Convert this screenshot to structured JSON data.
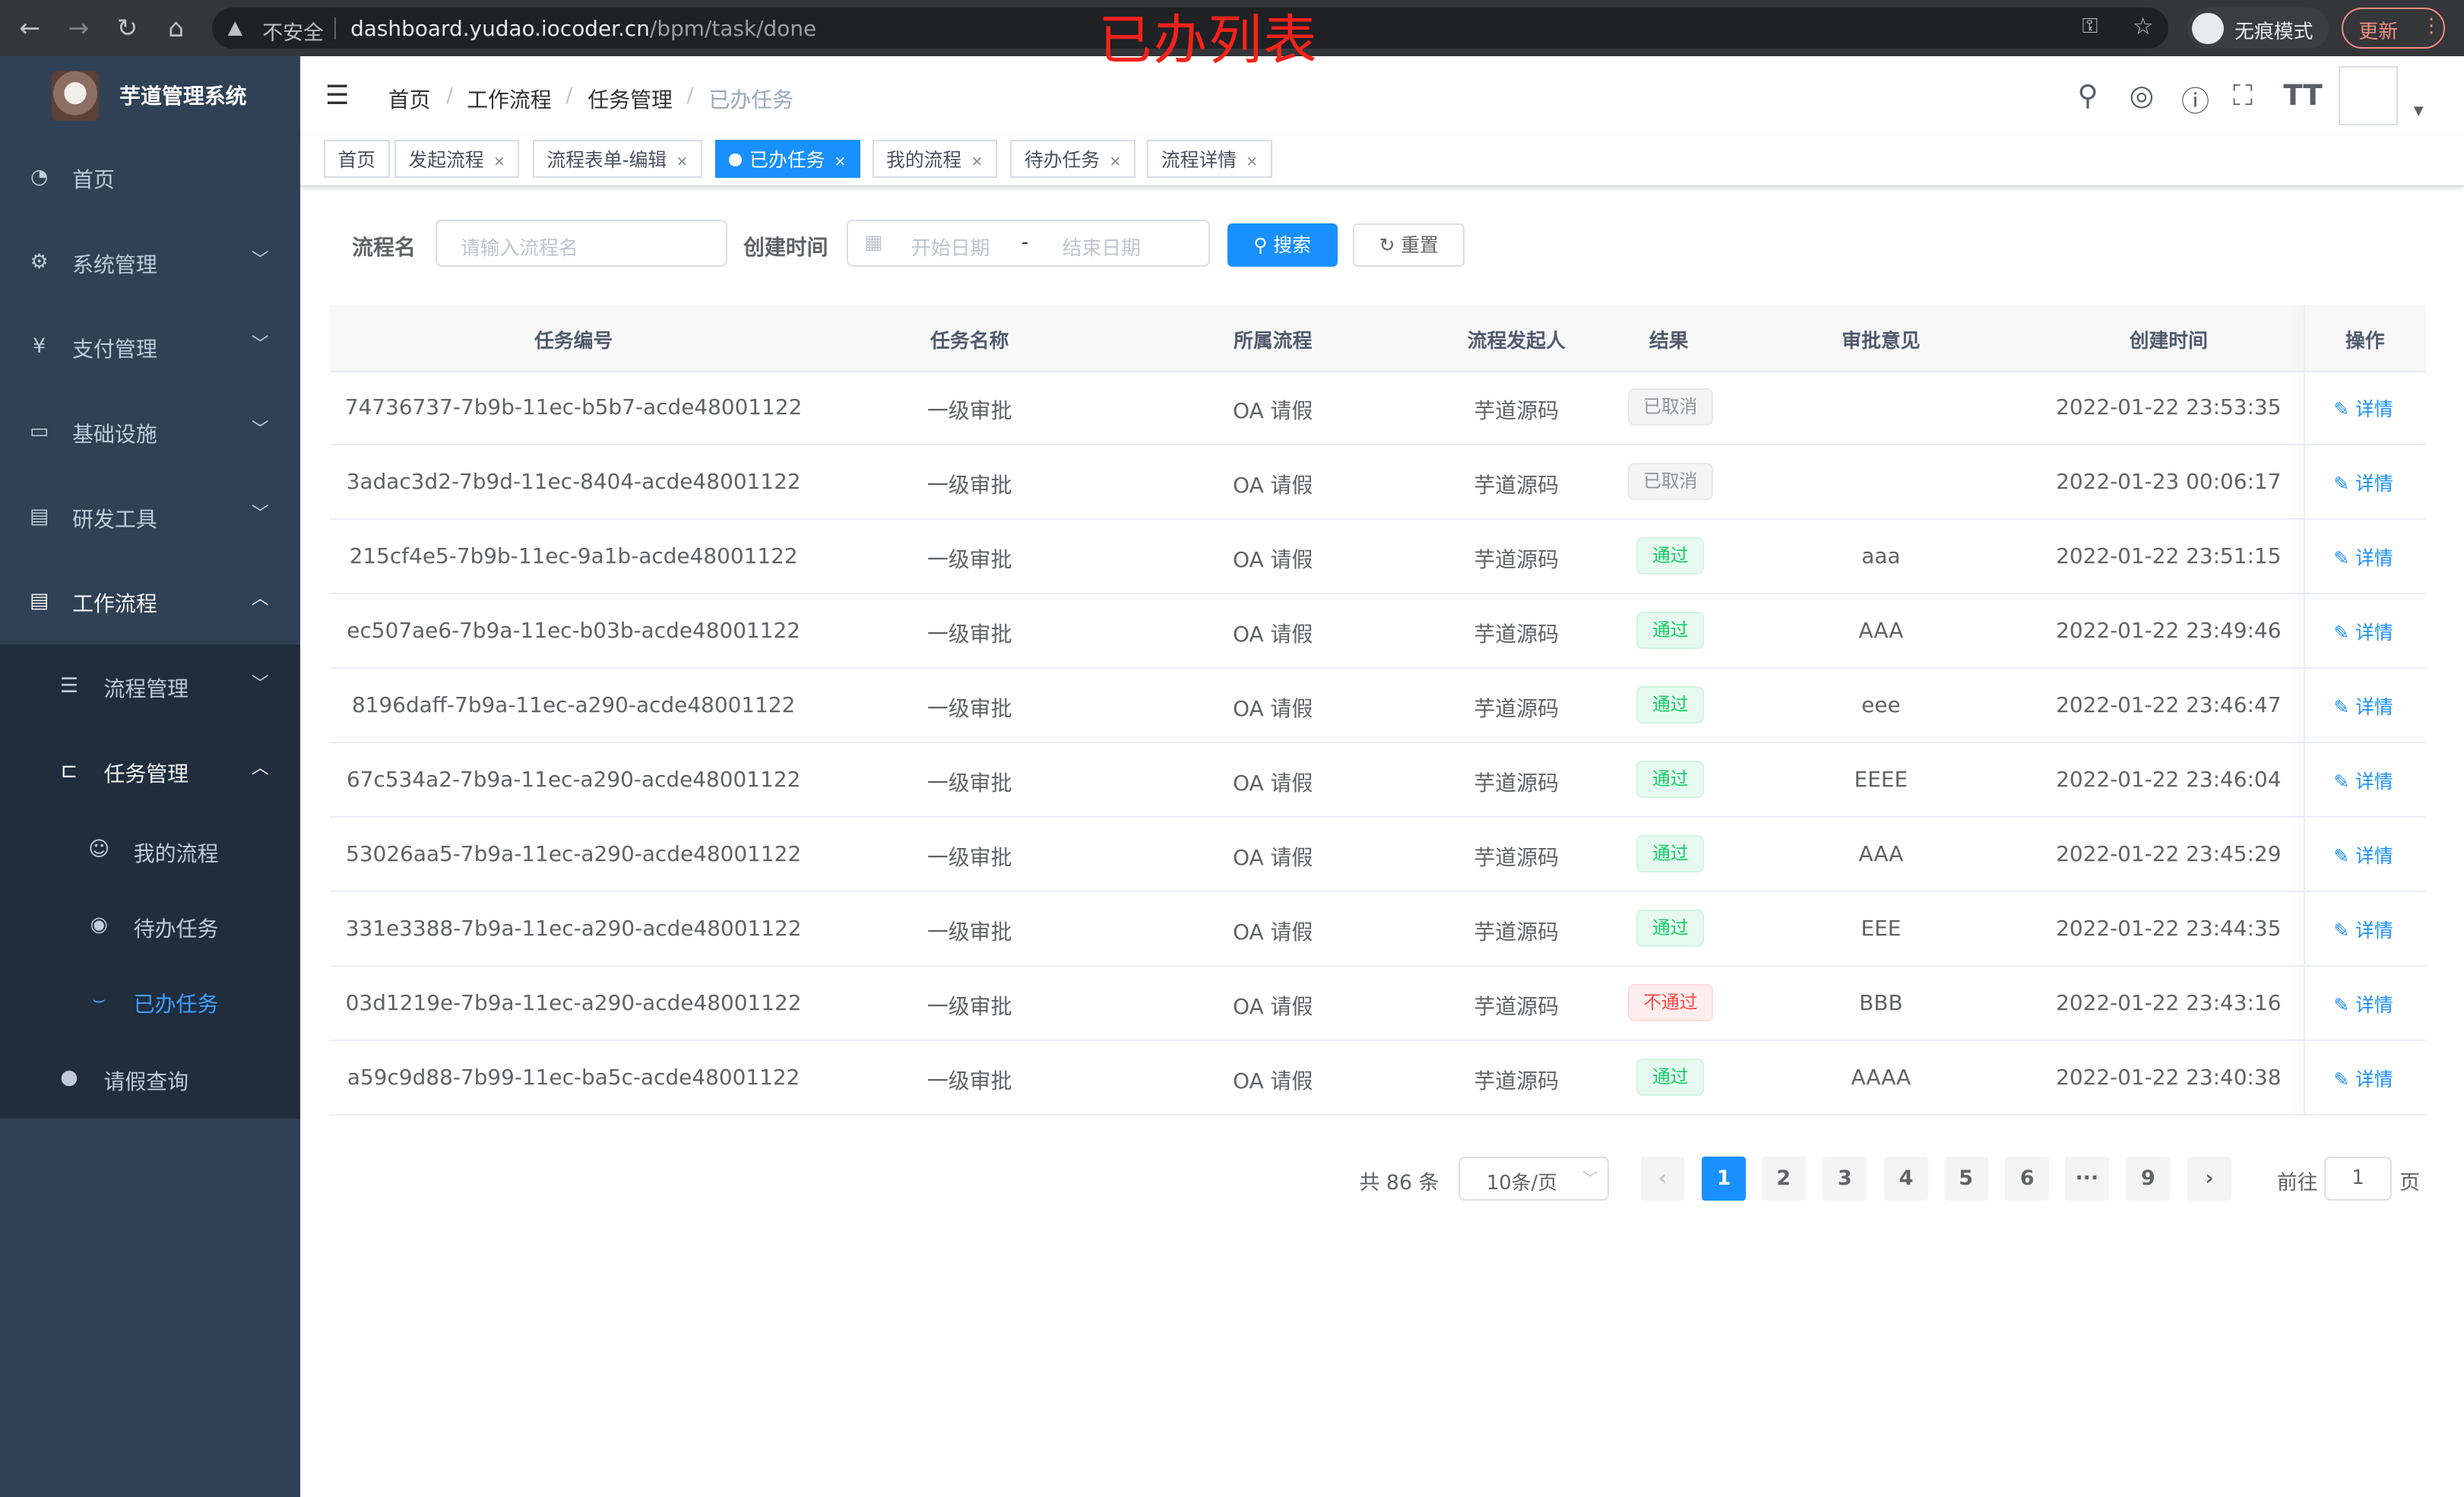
{
  "browser": {
    "security_label": "不安全",
    "url_host": "dashboard.yudao.iocoder.cn",
    "url_path": "/bpm/task/done",
    "incognito_label": "无痕模式",
    "update_label": "更新"
  },
  "overlay_title": "已办列表",
  "sidebar": {
    "brand": "芋道管理系统",
    "items": [
      {
        "label": "首页"
      },
      {
        "label": "系统管理"
      },
      {
        "label": "支付管理"
      },
      {
        "label": "基础设施"
      },
      {
        "label": "研发工具"
      },
      {
        "label": "工作流程"
      },
      {
        "label": "流程管理"
      },
      {
        "label": "任务管理"
      },
      {
        "label": "我的流程"
      },
      {
        "label": "待办任务"
      },
      {
        "label": "已办任务"
      },
      {
        "label": "请假查询"
      }
    ]
  },
  "breadcrumb": [
    "首页",
    "工作流程",
    "任务管理",
    "已办任务"
  ],
  "tags": [
    "首页",
    "发起流程",
    "流程表单-编辑",
    "已办任务",
    "我的流程",
    "待办任务",
    "流程详情"
  ],
  "search": {
    "name_label": "流程名",
    "name_placeholder": "请输入流程名",
    "time_label": "创建时间",
    "start_placeholder": "开始日期",
    "range_sep": "-",
    "end_placeholder": "结束日期",
    "search_btn": "搜索",
    "reset_btn": "重置"
  },
  "table": {
    "columns": [
      "任务编号",
      "任务名称",
      "所属流程",
      "流程发起人",
      "结果",
      "审批意见",
      "创建时间",
      "操作"
    ],
    "detail_label": "详情",
    "rows": [
      {
        "id": "74736737-7b9b-11ec-b5b7-acde48001122",
        "name": "一级审批",
        "flow": "OA 请假",
        "initiator": "芋道源码",
        "result": "已取消",
        "status": "cancel",
        "opinion": "",
        "time": "2022-01-22 23:53:35"
      },
      {
        "id": "3adac3d2-7b9d-11ec-8404-acde48001122",
        "name": "一级审批",
        "flow": "OA 请假",
        "initiator": "芋道源码",
        "result": "已取消",
        "status": "cancel",
        "opinion": "",
        "time": "2022-01-23 00:06:17"
      },
      {
        "id": "215cf4e5-7b9b-11ec-9a1b-acde48001122",
        "name": "一级审批",
        "flow": "OA 请假",
        "initiator": "芋道源码",
        "result": "通过",
        "status": "pass",
        "opinion": "aaa",
        "time": "2022-01-22 23:51:15"
      },
      {
        "id": "ec507ae6-7b9a-11ec-b03b-acde48001122",
        "name": "一级审批",
        "flow": "OA 请假",
        "initiator": "芋道源码",
        "result": "通过",
        "status": "pass",
        "opinion": "AAA",
        "time": "2022-01-22 23:49:46"
      },
      {
        "id": "8196daff-7b9a-11ec-a290-acde48001122",
        "name": "一级审批",
        "flow": "OA 请假",
        "initiator": "芋道源码",
        "result": "通过",
        "status": "pass",
        "opinion": "eee",
        "time": "2022-01-22 23:46:47"
      },
      {
        "id": "67c534a2-7b9a-11ec-a290-acde48001122",
        "name": "一级审批",
        "flow": "OA 请假",
        "initiator": "芋道源码",
        "result": "通过",
        "status": "pass",
        "opinion": "EEEE",
        "time": "2022-01-22 23:46:04"
      },
      {
        "id": "53026aa5-7b9a-11ec-a290-acde48001122",
        "name": "一级审批",
        "flow": "OA 请假",
        "initiator": "芋道源码",
        "result": "通过",
        "status": "pass",
        "opinion": "AAA",
        "time": "2022-01-22 23:45:29"
      },
      {
        "id": "331e3388-7b9a-11ec-a290-acde48001122",
        "name": "一级审批",
        "flow": "OA 请假",
        "initiator": "芋道源码",
        "result": "通过",
        "status": "pass",
        "opinion": "EEE",
        "time": "2022-01-22 23:44:35"
      },
      {
        "id": "03d1219e-7b9a-11ec-a290-acde48001122",
        "name": "一级审批",
        "flow": "OA 请假",
        "initiator": "芋道源码",
        "result": "不通过",
        "status": "reject",
        "opinion": "BBB",
        "time": "2022-01-22 23:43:16"
      },
      {
        "id": "a59c9d88-7b99-11ec-ba5c-acde48001122",
        "name": "一级审批",
        "flow": "OA 请假",
        "initiator": "芋道源码",
        "result": "通过",
        "status": "pass",
        "opinion": "AAAA",
        "time": "2022-01-22 23:40:38"
      }
    ]
  },
  "pagination": {
    "total_label": "共 86 条",
    "page_size": "10条/页",
    "pages": [
      "1",
      "2",
      "3",
      "4",
      "5",
      "6",
      "···",
      "9"
    ],
    "current": "1",
    "goto_label": "前往",
    "goto_value": "1",
    "page_suffix": "页"
  },
  "colors": {
    "primary": "#1890ff",
    "sidebar_bg": "#304156",
    "pass": "#13ce66",
    "reject": "#ff4949",
    "cancel": "#909399"
  }
}
